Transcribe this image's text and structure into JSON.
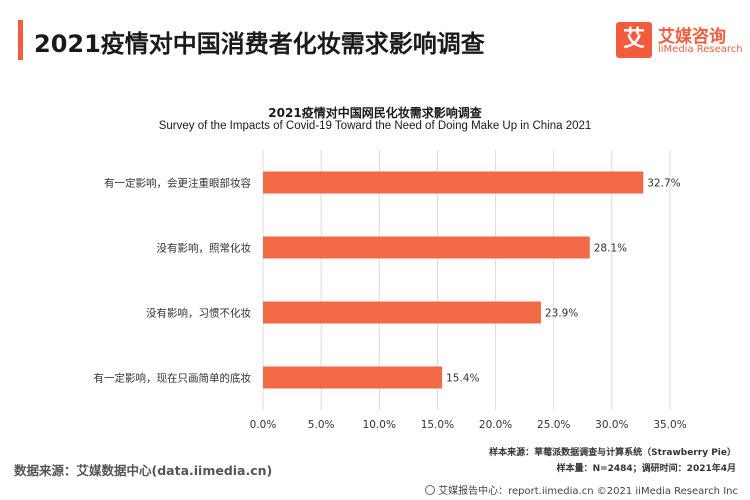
{
  "header": {
    "title": "2021疫情对中国消费者化妆需求影响调查"
  },
  "logo": {
    "glyph": "艾",
    "cn": "艾媒咨询",
    "en": "iiMedia Research"
  },
  "chart_data": {
    "type": "bar",
    "orientation": "horizontal",
    "title": "2021疫情对中国网民化妆需求影响调查",
    "subtitle": "Survey of the Impacts of Covid-19 Toward the Need of Doing Make Up in China 2021",
    "categories": [
      "有一定影响，会更注重眼部妆容",
      "没有影响，照常化妆",
      "没有影响，习惯不化妆",
      "有一定影响，现在只画简单的底妆"
    ],
    "values": [
      32.7,
      28.1,
      23.9,
      15.4
    ],
    "value_labels": [
      "32.7%",
      "28.1%",
      "23.9%",
      "15.4%"
    ],
    "xlim": [
      0,
      35
    ],
    "ticks": [
      0,
      5,
      10,
      15,
      20,
      25,
      30,
      35
    ],
    "tick_labels": [
      "0.0%",
      "5.0%",
      "10.0%",
      "15.0%",
      "20.0%",
      "25.0%",
      "30.0%",
      "35.0%"
    ],
    "grid": true,
    "bar_color": "#f26a45",
    "grid_color": "#dcdcdc"
  },
  "notes": {
    "source_system": "样本来源：草莓派数据调查与计算系统（Strawberry Pie）",
    "sample": "样本量：N=2484；调研时间：2021年4月"
  },
  "source": "数据来源：艾媒数据中心(data.iimedia.cn)",
  "footer": "艾媒报告中心：report.iimedia.cn  ©2021  iiMedia Research  Inc"
}
